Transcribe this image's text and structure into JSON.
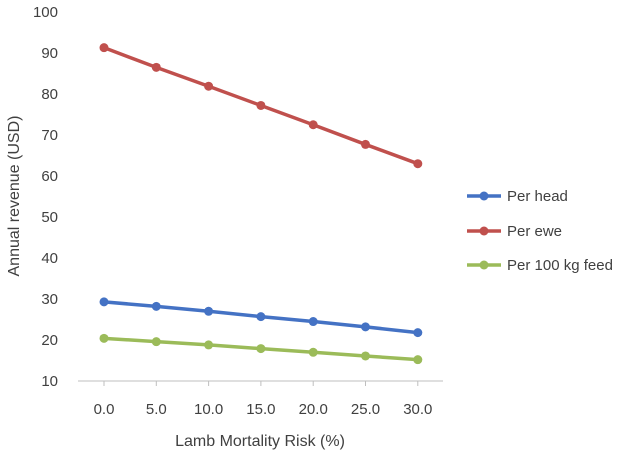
{
  "chart_data": {
    "type": "line",
    "title": "",
    "xlabel": "Lamb Mortality Risk (%)",
    "ylabel": "Annual revenue (USD)",
    "categories": [
      "0.0",
      "5.0",
      "10.0",
      "15.0",
      "20.0",
      "25.0",
      "30.0"
    ],
    "x": [
      0,
      5,
      10,
      15,
      20,
      25,
      30
    ],
    "ylim": [
      10,
      100
    ],
    "yticks": [
      "10",
      "20",
      "30",
      "40",
      "50",
      "60",
      "70",
      "80",
      "90",
      "100"
    ],
    "grid": false,
    "legend_position": "right",
    "series": [
      {
        "name": "Per head",
        "color": "#4472c4",
        "values": [
          29.3,
          28.2,
          27.0,
          25.7,
          24.5,
          23.2,
          21.8
        ]
      },
      {
        "name": "Per ewe",
        "color": "#c0504d",
        "values": [
          91.3,
          86.5,
          81.9,
          77.2,
          72.5,
          67.7,
          63.0
        ]
      },
      {
        "name": "Per 100 kg feed",
        "color": "#9bbb59",
        "values": [
          20.4,
          19.6,
          18.8,
          17.9,
          17.0,
          16.1,
          15.2
        ]
      }
    ]
  }
}
